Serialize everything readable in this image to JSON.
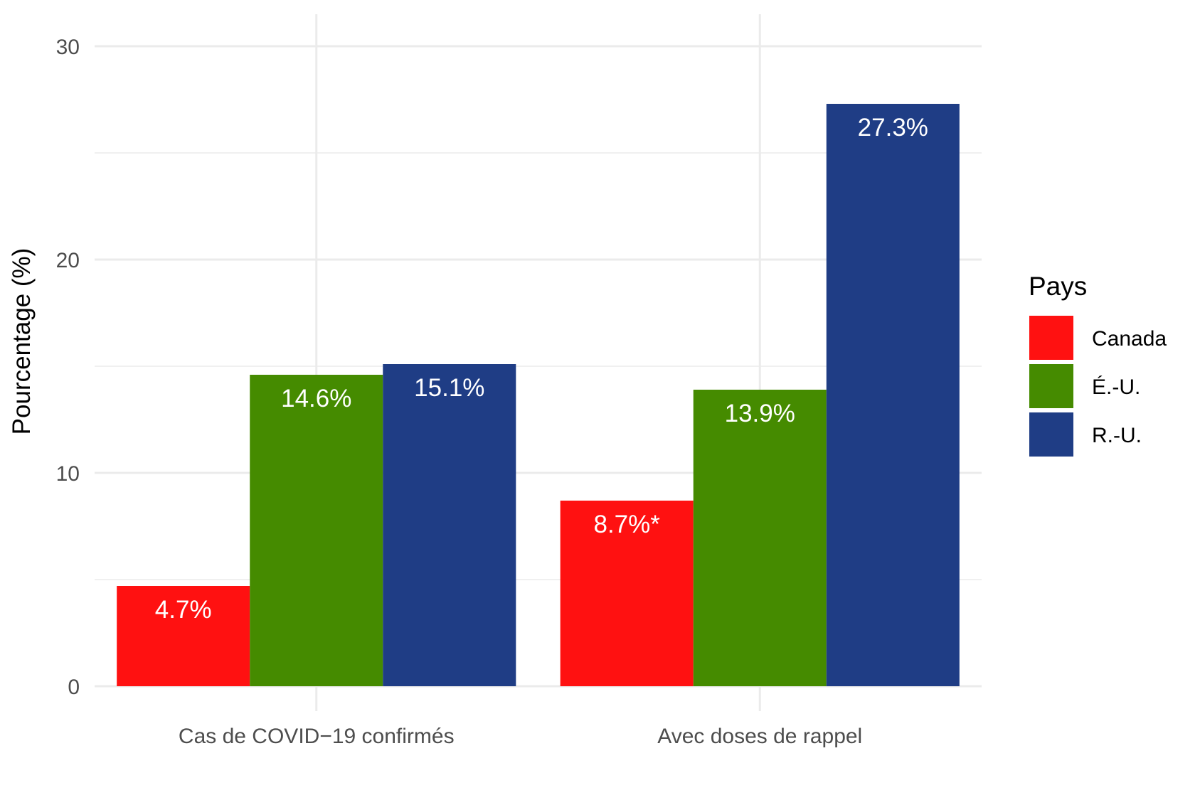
{
  "chart_data": {
    "type": "bar",
    "categories": [
      "Cas de COVID−19 confirmés",
      "Avec doses de rappel"
    ],
    "series": [
      {
        "name": "Canada",
        "values": [
          4.7,
          8.7
        ],
        "labels": [
          "4.7%",
          "8.7%*"
        ],
        "color": "#ff1111"
      },
      {
        "name": "É.-U.",
        "values": [
          14.6,
          13.9
        ],
        "labels": [
          "14.6%",
          "13.9%"
        ],
        "color": "#458b00"
      },
      {
        "name": "R.-U.",
        "values": [
          15.1,
          27.3
        ],
        "labels": [
          "15.1%",
          "27.3%"
        ],
        "color": "#1f3d85"
      }
    ],
    "title": "",
    "xlabel": "",
    "ylabel": "Pourcentage (%)",
    "ylim": [
      0,
      30
    ],
    "yticks": [
      0,
      10,
      20,
      30
    ],
    "grid": true,
    "legend_title": "Pays",
    "legend_position": "right"
  }
}
